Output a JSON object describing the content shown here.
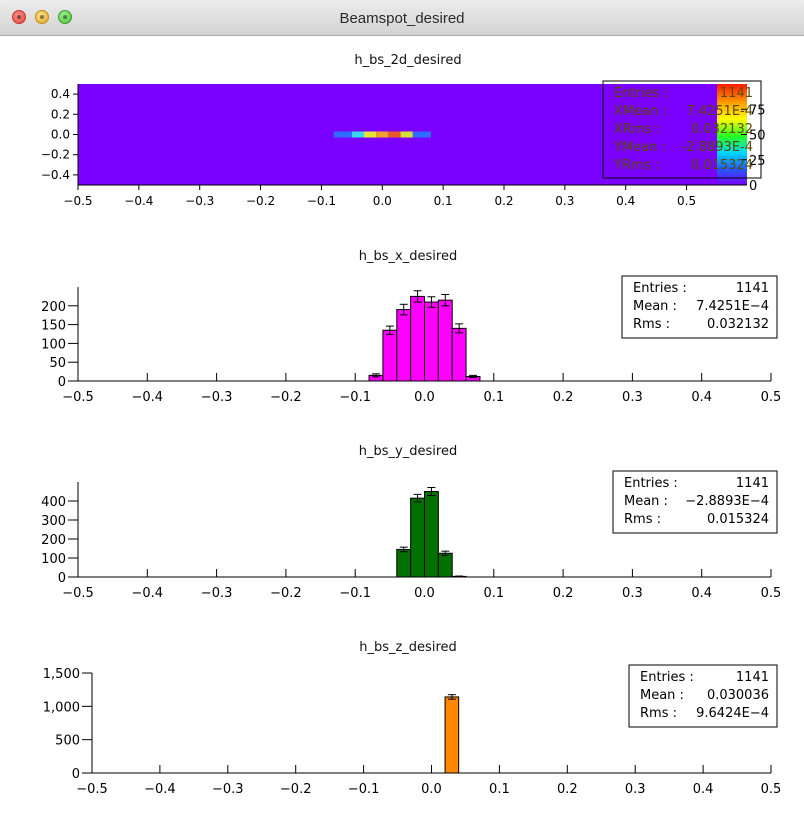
{
  "window": {
    "title": "Beamspot_desired"
  },
  "chart_data": [
    {
      "type": "heatmap",
      "title": "h_bs_2d_desired",
      "xlabel": "",
      "ylabel": "",
      "xlim": [
        -0.5,
        0.55
      ],
      "ylim": [
        -0.5,
        0.5
      ],
      "x_ticks": [
        "−0.5",
        "−0.4",
        "−0.3",
        "−0.2",
        "−0.1",
        "0.0",
        "0.1",
        "0.2",
        "0.3",
        "0.4",
        "0.5"
      ],
      "y_ticks": [
        "0.4",
        "0.2",
        "0.0",
        "−0.2",
        "−0.4"
      ],
      "colorbar_ticks": [
        "75",
        "50",
        "25",
        "0"
      ],
      "colorbar_range": [
        0,
        100
      ],
      "cells": [
        {
          "x0": -0.08,
          "x1": -0.05,
          "y0": -0.03,
          "y1": 0.03,
          "color": "#2f6cff"
        },
        {
          "x0": -0.05,
          "x1": -0.03,
          "y0": -0.03,
          "y1": 0.03,
          "color": "#39d6f2"
        },
        {
          "x0": -0.03,
          "x1": -0.01,
          "y0": -0.03,
          "y1": 0.03,
          "color": "#e7e236"
        },
        {
          "x0": -0.01,
          "x1": 0.01,
          "y0": -0.03,
          "y1": 0.03,
          "color": "#f0a02c"
        },
        {
          "x0": 0.01,
          "x1": 0.03,
          "y0": -0.03,
          "y1": 0.03,
          "color": "#e85a2c"
        },
        {
          "x0": 0.03,
          "x1": 0.05,
          "y0": -0.03,
          "y1": 0.03,
          "color": "#d8df33"
        },
        {
          "x0": 0.05,
          "x1": 0.08,
          "y0": -0.03,
          "y1": 0.03,
          "color": "#2f6cff"
        }
      ],
      "stats": [
        {
          "label": "Entries :",
          "value": "1141"
        },
        {
          "label": "XMean :",
          "value": "7.4251E-4"
        },
        {
          "label": "XRms :",
          "value": "0.032132"
        },
        {
          "label": "YMean :",
          "value": "-2.8893E-4"
        },
        {
          "label": "YRms :",
          "value": "0.015324"
        }
      ]
    },
    {
      "type": "bar",
      "title": "h_bs_x_desired",
      "xlabel": "",
      "ylabel": "",
      "xlim": [
        -0.5,
        0.5
      ],
      "ylim": [
        0,
        250
      ],
      "color": "#ff00ff",
      "bin_width": 0.02,
      "x_ticks": [
        "−0.5",
        "−0.4",
        "−0.3",
        "−0.2",
        "−0.1",
        "0.0",
        "0.1",
        "0.2",
        "0.3",
        "0.4",
        "0.5"
      ],
      "y_ticks": [
        "200",
        "150",
        "100",
        "50",
        "0"
      ],
      "y_tick_values": [
        200,
        150,
        100,
        50,
        0
      ],
      "bins": [
        {
          "x": -0.07,
          "value": 15,
          "err": 4
        },
        {
          "x": -0.05,
          "value": 135,
          "err": 11
        },
        {
          "x": -0.03,
          "value": 190,
          "err": 14
        },
        {
          "x": -0.01,
          "value": 225,
          "err": 15
        },
        {
          "x": 0.01,
          "value": 210,
          "err": 14
        },
        {
          "x": 0.03,
          "value": 215,
          "err": 15
        },
        {
          "x": 0.05,
          "value": 140,
          "err": 12
        },
        {
          "x": 0.07,
          "value": 12,
          "err": 3
        }
      ],
      "stats": [
        {
          "label": "Entries :",
          "value": "1141"
        },
        {
          "label": "Mean :",
          "value": "7.4251E−4"
        },
        {
          "label": "Rms :",
          "value": "0.032132"
        }
      ]
    },
    {
      "type": "bar",
      "title": "h_bs_y_desired",
      "xlabel": "",
      "ylabel": "",
      "xlim": [
        -0.5,
        0.5
      ],
      "ylim": [
        0,
        500
      ],
      "color": "#007000",
      "bin_width": 0.02,
      "x_ticks": [
        "−0.5",
        "−0.4",
        "−0.3",
        "−0.2",
        "−0.1",
        "0.0",
        "0.1",
        "0.2",
        "0.3",
        "0.4",
        "0.5"
      ],
      "y_ticks": [
        "400",
        "300",
        "200",
        "100",
        "0"
      ],
      "y_tick_values": [
        400,
        300,
        200,
        100,
        0
      ],
      "bins": [
        {
          "x": -0.03,
          "value": 145,
          "err": 12
        },
        {
          "x": -0.01,
          "value": 415,
          "err": 20
        },
        {
          "x": 0.01,
          "value": 450,
          "err": 21
        },
        {
          "x": 0.03,
          "value": 125,
          "err": 11
        },
        {
          "x": 0.05,
          "value": 3,
          "err": 2
        }
      ],
      "stats": [
        {
          "label": "Entries :",
          "value": "1141"
        },
        {
          "label": "Mean :",
          "value": "−2.8893E−4"
        },
        {
          "label": "Rms :",
          "value": "0.015324"
        }
      ]
    },
    {
      "type": "bar",
      "title": "h_bs_z_desired",
      "xlabel": "",
      "ylabel": "",
      "xlim": [
        -0.5,
        0.5
      ],
      "ylim": [
        0,
        1500
      ],
      "color": "#ff8800",
      "bin_width": 0.02,
      "x_ticks": [
        "−0.5",
        "−0.4",
        "−0.3",
        "−0.2",
        "−0.1",
        "0.0",
        "0.1",
        "0.2",
        "0.3",
        "0.4",
        "0.5"
      ],
      "y_ticks": [
        "1,500",
        "1,000",
        "500",
        "0"
      ],
      "y_tick_values": [
        1500,
        1000,
        500,
        0
      ],
      "bins": [
        {
          "x": 0.03,
          "value": 1141,
          "err": 34
        }
      ],
      "stats": [
        {
          "label": "Entries :",
          "value": "1141"
        },
        {
          "label": "Mean :",
          "value": "0.030036"
        },
        {
          "label": "Rms :",
          "value": "9.6424E−4"
        }
      ]
    }
  ]
}
